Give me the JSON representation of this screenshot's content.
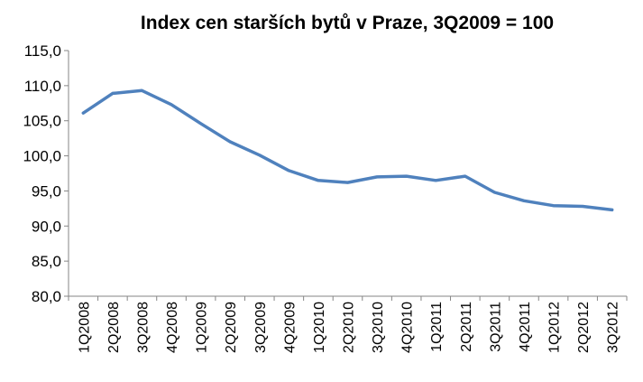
{
  "chart_data": {
    "type": "line",
    "title": "Index cen starších bytů v Praze, 3Q2009 = 100",
    "xlabel": "",
    "ylabel": "",
    "categories": [
      "1Q2008",
      "2Q2008",
      "3Q2008",
      "4Q2008",
      "1Q2009",
      "2Q2009",
      "3Q2009",
      "4Q2009",
      "1Q2010",
      "2Q2010",
      "3Q2010",
      "4Q2010",
      "1Q2011",
      "2Q2011",
      "3Q2011",
      "4Q2011",
      "1Q2012",
      "2Q2012",
      "3Q2012"
    ],
    "series": [
      {
        "values": [
          106.1,
          108.9,
          109.3,
          107.3,
          104.6,
          102.0,
          100.1,
          97.9,
          96.5,
          96.2,
          97.0,
          97.1,
          96.5,
          97.1,
          94.8,
          93.6,
          92.9,
          92.8,
          92.3
        ],
        "color": "#4F81BD"
      }
    ],
    "yticks": [
      "80,0",
      "85,0",
      "90,0",
      "95,0",
      "100,0",
      "105,0",
      "110,0",
      "115,0"
    ],
    "ylim": [
      80,
      115
    ],
    "grid": false,
    "legend": "none"
  }
}
